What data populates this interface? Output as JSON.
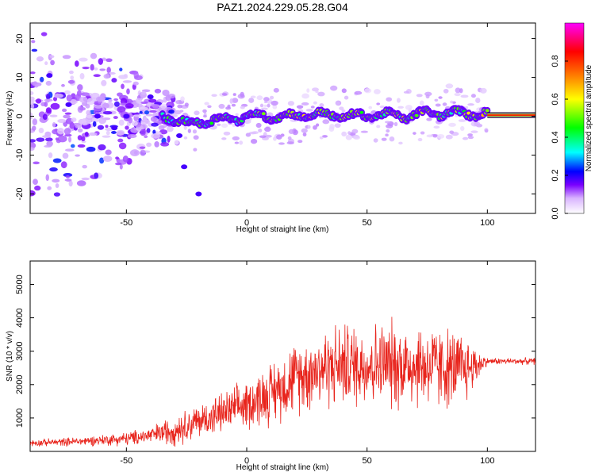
{
  "title": "PAZ1.2024.229.05.28.G04",
  "chart_data": [
    {
      "type": "heatmap",
      "xlabel": "Height of straight line (km)",
      "ylabel": "Frequency (Hz)",
      "xlim": [
        -90,
        120
      ],
      "ylim": [
        -25,
        24
      ],
      "xticks": [
        -50,
        0,
        50,
        100
      ],
      "yticks": [
        -20,
        -10,
        0,
        10,
        20
      ],
      "colormap": [
        "#ffffff",
        "#7a00ff",
        "#0000ff",
        "#00ffff",
        "#00ff00",
        "#ffff00",
        "#ff8000",
        "#ff0000",
        "#ff00ff"
      ],
      "colorbar": {
        "label": "Normalized spectral amplitude",
        "range": [
          0,
          1
        ],
        "ticks": [
          "0.0",
          "0.2",
          "0.4",
          "0.6",
          "0.8"
        ]
      },
      "ridge": [
        {
          "x": -35,
          "f": 0.3,
          "a": 0.35
        },
        {
          "x": -25,
          "f": -2.0,
          "a": 0.45
        },
        {
          "x": -15,
          "f": -1.0,
          "a": 0.45
        },
        {
          "x": -5,
          "f": -0.5,
          "a": 0.45
        },
        {
          "x": 5,
          "f": 0.2,
          "a": 0.5
        },
        {
          "x": 15,
          "f": -0.2,
          "a": 0.5
        },
        {
          "x": 25,
          "f": 0.5,
          "a": 0.5
        },
        {
          "x": 35,
          "f": 0.3,
          "a": 0.5
        },
        {
          "x": 45,
          "f": 0.0,
          "a": 0.5
        },
        {
          "x": 55,
          "f": 0.5,
          "a": 0.5
        },
        {
          "x": 65,
          "f": 0.0,
          "a": 0.5
        },
        {
          "x": 75,
          "f": 0.8,
          "a": 0.5
        },
        {
          "x": 85,
          "f": 0.8,
          "a": 0.5
        },
        {
          "x": 95,
          "f": 0.7,
          "a": 0.5
        },
        {
          "x": 120,
          "f": 0.3,
          "a": 0.85
        }
      ]
    },
    {
      "type": "line",
      "xlabel": "Height of straight line (km)",
      "ylabel": "SNR (10 * v/v)",
      "xlim": [
        -90,
        120
      ],
      "ylim": [
        0,
        5700
      ],
      "xticks": [
        -50,
        0,
        50,
        100
      ],
      "yticks": [
        1000,
        2000,
        3000,
        4000,
        5000
      ],
      "series": [
        {
          "color": "#e8241c",
          "envelope": {
            "x": [
              -90,
              -70,
              -50,
              -40,
              -30,
              -20,
              -10,
              0,
              10,
              20,
              30,
              40,
              50,
              60,
              70,
              80,
              90,
              100,
              120
            ],
            "mean": [
              250,
              300,
              380,
              480,
              650,
              900,
              1150,
              1400,
              1750,
              2200,
              2500,
              2600,
              2600,
              2600,
              2600,
              2500,
              2450,
              2700,
              2700
            ],
            "spread": [
              150,
              200,
              300,
              400,
              700,
              800,
              900,
              1100,
              1400,
              1600,
              1800,
              1900,
              1900,
              2000,
              2000,
              1900,
              1700,
              150,
              150
            ]
          }
        }
      ]
    }
  ]
}
